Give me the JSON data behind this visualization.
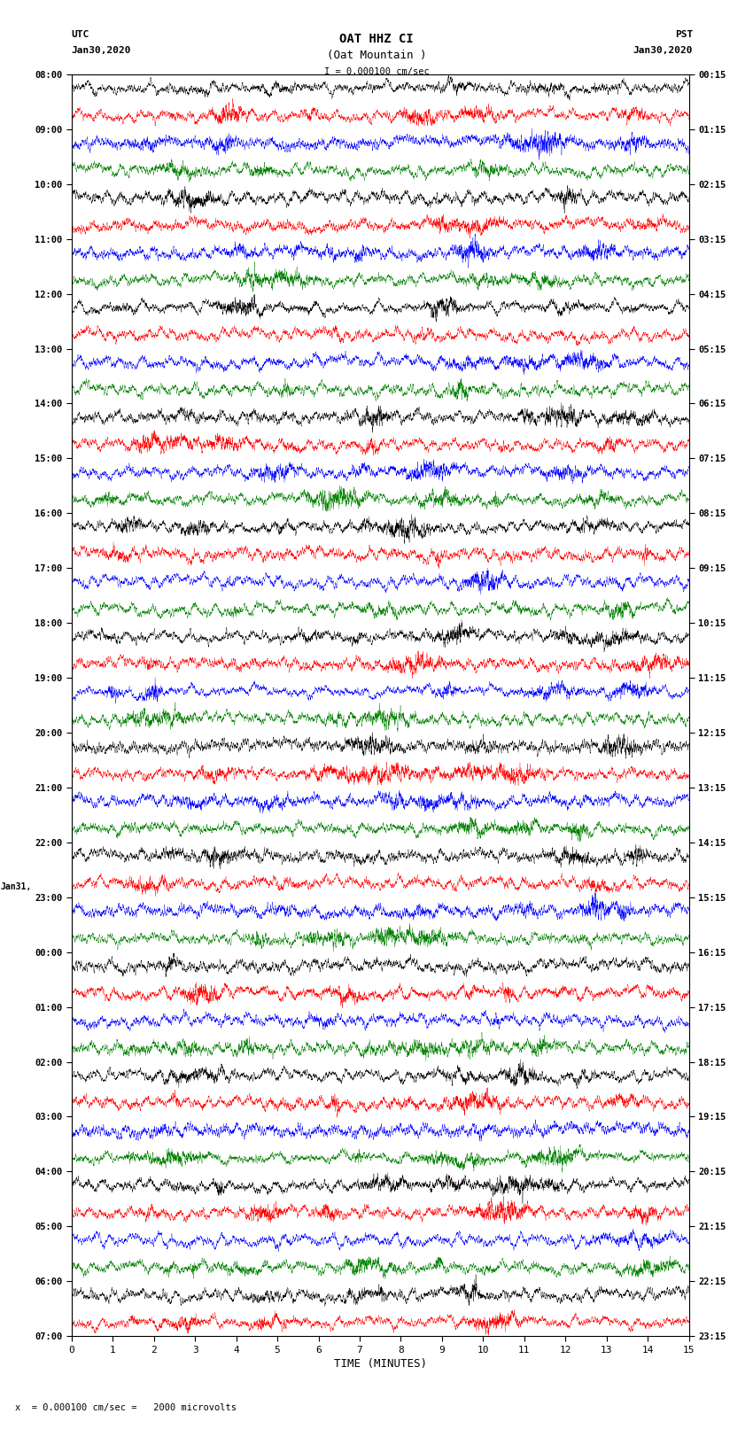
{
  "title_line1": "OAT HHZ CI",
  "title_line2": "(Oat Mountain )",
  "title_line3": "I = 0.000100 cm/sec",
  "left_label_top": "UTC",
  "left_label_date": "Jan30,2020",
  "right_label_top": "PST",
  "right_label_date": "Jan30,2020",
  "xlabel": "TIME (MINUTES)",
  "footer": "= 0.000100 cm/sec =   2000 microvolts",
  "xmin": 0,
  "xmax": 15,
  "num_rows": 46,
  "row_colors": [
    "black",
    "red",
    "blue",
    "green"
  ],
  "bg_color": "white",
  "left_times": [
    "08:00",
    "",
    "09:00",
    "",
    "10:00",
    "",
    "11:00",
    "",
    "12:00",
    "",
    "13:00",
    "",
    "14:00",
    "",
    "15:00",
    "",
    "16:00",
    "",
    "17:00",
    "",
    "18:00",
    "",
    "19:00",
    "",
    "20:00",
    "",
    "21:00",
    "",
    "22:00",
    "",
    "23:00",
    "",
    "00:00",
    "",
    "01:00",
    "",
    "02:00",
    "",
    "03:00",
    "",
    "04:00",
    "",
    "05:00",
    "",
    "06:00",
    "",
    "07:00",
    ""
  ],
  "right_times": [
    "00:15",
    "",
    "01:15",
    "",
    "02:15",
    "",
    "03:15",
    "",
    "04:15",
    "",
    "05:15",
    "",
    "06:15",
    "",
    "07:15",
    "",
    "08:15",
    "",
    "09:15",
    "",
    "10:15",
    "",
    "11:15",
    "",
    "12:15",
    "",
    "13:15",
    "",
    "14:15",
    "",
    "15:15",
    "",
    "16:15",
    "",
    "17:15",
    "",
    "18:15",
    "",
    "19:15",
    "",
    "20:15",
    "",
    "21:15",
    "",
    "22:15",
    "",
    "23:15",
    ""
  ],
  "date_change_row": 30,
  "left_date2": "Jan31,",
  "noise_seed": 42,
  "n_points": 9000,
  "amplitude_scale": 0.55,
  "high_freq": 120.0,
  "low_freq": 8.0,
  "linewidth": 0.25
}
